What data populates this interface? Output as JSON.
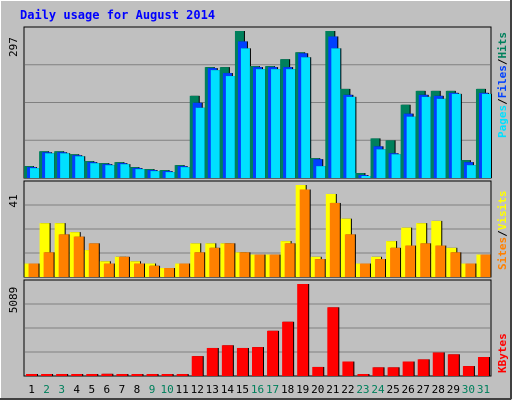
{
  "title": "Daily usage for August 2014",
  "colors": {
    "background": "#c0c0c0",
    "panel": "#c0c0c0",
    "grid": "#808080",
    "hits": "#00805c",
    "files": "#0040ff",
    "pages": "#00e0ff",
    "visits": "#ffff00",
    "sites": "#ff8000",
    "kbytes": "#ff0000",
    "title": "#0000ff",
    "weekend_day": "#00805c",
    "weekday": "#000000"
  },
  "chart_data": [
    {
      "type": "bar",
      "panel": "hits-files-pages",
      "ymax_label": "297",
      "legend": [
        "Pages",
        "Files",
        "Hits"
      ],
      "x": [
        1,
        2,
        3,
        4,
        5,
        6,
        7,
        8,
        9,
        10,
        11,
        12,
        13,
        14,
        15,
        16,
        17,
        18,
        19,
        20,
        21,
        22,
        23,
        24,
        25,
        26,
        27,
        28,
        29,
        30,
        31
      ],
      "series": [
        {
          "name": "Hits",
          "values": [
            24,
            54,
            54,
            48,
            34,
            30,
            32,
            22,
            18,
            16,
            26,
            166,
            224,
            224,
            297,
            226,
            226,
            240,
            254,
            40,
            297,
            180,
            10,
            80,
            76,
            148,
            176,
            176,
            176,
            36,
            180
          ]
        },
        {
          "name": "Files",
          "values": [
            22,
            52,
            52,
            46,
            32,
            28,
            30,
            20,
            16,
            14,
            24,
            152,
            222,
            212,
            276,
            224,
            224,
            224,
            252,
            38,
            286,
            168,
            6,
            64,
            50,
            130,
            168,
            166,
            172,
            32,
            172
          ]
        },
        {
          "name": "Pages",
          "values": [
            20,
            50,
            50,
            44,
            30,
            26,
            28,
            18,
            14,
            12,
            22,
            142,
            218,
            206,
            262,
            220,
            220,
            220,
            244,
            24,
            262,
            164,
            4,
            58,
            48,
            124,
            164,
            160,
            170,
            26,
            170
          ]
        }
      ]
    },
    {
      "type": "bar",
      "panel": "visits-sites",
      "ymax_label": "41",
      "legend": [
        "Sites",
        "Visits"
      ],
      "x": [
        1,
        2,
        3,
        4,
        5,
        6,
        7,
        8,
        9,
        10,
        11,
        12,
        13,
        14,
        15,
        16,
        17,
        18,
        19,
        20,
        21,
        22,
        23,
        24,
        25,
        26,
        27,
        28,
        29,
        30,
        31
      ],
      "series": [
        {
          "name": "Visits",
          "values": [
            6,
            24,
            24,
            20,
            12,
            7,
            9,
            7,
            6,
            4,
            6,
            15,
            15,
            15,
            11,
            10,
            10,
            16,
            41,
            9,
            37,
            26,
            6,
            9,
            16,
            22,
            24,
            25,
            13,
            6,
            10
          ]
        },
        {
          "name": "Sites",
          "values": [
            6,
            11,
            19,
            18,
            15,
            6,
            9,
            6,
            5,
            4,
            6,
            11,
            13,
            15,
            11,
            10,
            10,
            15,
            39,
            8,
            33,
            19,
            6,
            8,
            13,
            14,
            15,
            14,
            11,
            6,
            10
          ]
        }
      ]
    },
    {
      "type": "bar",
      "panel": "kbytes",
      "ymax_label": "5089",
      "legend": [
        "KBytes"
      ],
      "x": [
        1,
        2,
        3,
        4,
        5,
        6,
        7,
        8,
        9,
        10,
        11,
        12,
        13,
        14,
        15,
        16,
        17,
        18,
        19,
        20,
        21,
        22,
        23,
        24,
        25,
        26,
        27,
        28,
        29,
        30,
        31
      ],
      "series": [
        {
          "name": "KBytes",
          "values": [
            40,
            40,
            40,
            40,
            40,
            120,
            40,
            40,
            40,
            40,
            40,
            1100,
            1550,
            1700,
            1550,
            1600,
            2500,
            3000,
            5089,
            500,
            3800,
            800,
            40,
            480,
            480,
            800,
            920,
            1300,
            1200,
            550,
            1050
          ]
        }
      ]
    }
  ],
  "days": [
    {
      "label": "1",
      "weekend": false
    },
    {
      "label": "2",
      "weekend": true
    },
    {
      "label": "3",
      "weekend": true
    },
    {
      "label": "4",
      "weekend": false
    },
    {
      "label": "5",
      "weekend": false
    },
    {
      "label": "6",
      "weekend": false
    },
    {
      "label": "7",
      "weekend": false
    },
    {
      "label": "8",
      "weekend": false
    },
    {
      "label": "9",
      "weekend": true
    },
    {
      "label": "10",
      "weekend": true
    },
    {
      "label": "11",
      "weekend": false
    },
    {
      "label": "12",
      "weekend": false
    },
    {
      "label": "13",
      "weekend": false
    },
    {
      "label": "14",
      "weekend": false
    },
    {
      "label": "15",
      "weekend": false
    },
    {
      "label": "16",
      "weekend": true
    },
    {
      "label": "17",
      "weekend": true
    },
    {
      "label": "18",
      "weekend": false
    },
    {
      "label": "19",
      "weekend": false
    },
    {
      "label": "20",
      "weekend": false
    },
    {
      "label": "21",
      "weekend": false
    },
    {
      "label": "22",
      "weekend": false
    },
    {
      "label": "23",
      "weekend": true
    },
    {
      "label": "24",
      "weekend": true
    },
    {
      "label": "25",
      "weekend": false
    },
    {
      "label": "26",
      "weekend": false
    },
    {
      "label": "27",
      "weekend": false
    },
    {
      "label": "28",
      "weekend": false
    },
    {
      "label": "29",
      "weekend": false
    },
    {
      "label": "30",
      "weekend": true
    },
    {
      "label": "31",
      "weekend": true
    }
  ],
  "legend_separator": "/"
}
